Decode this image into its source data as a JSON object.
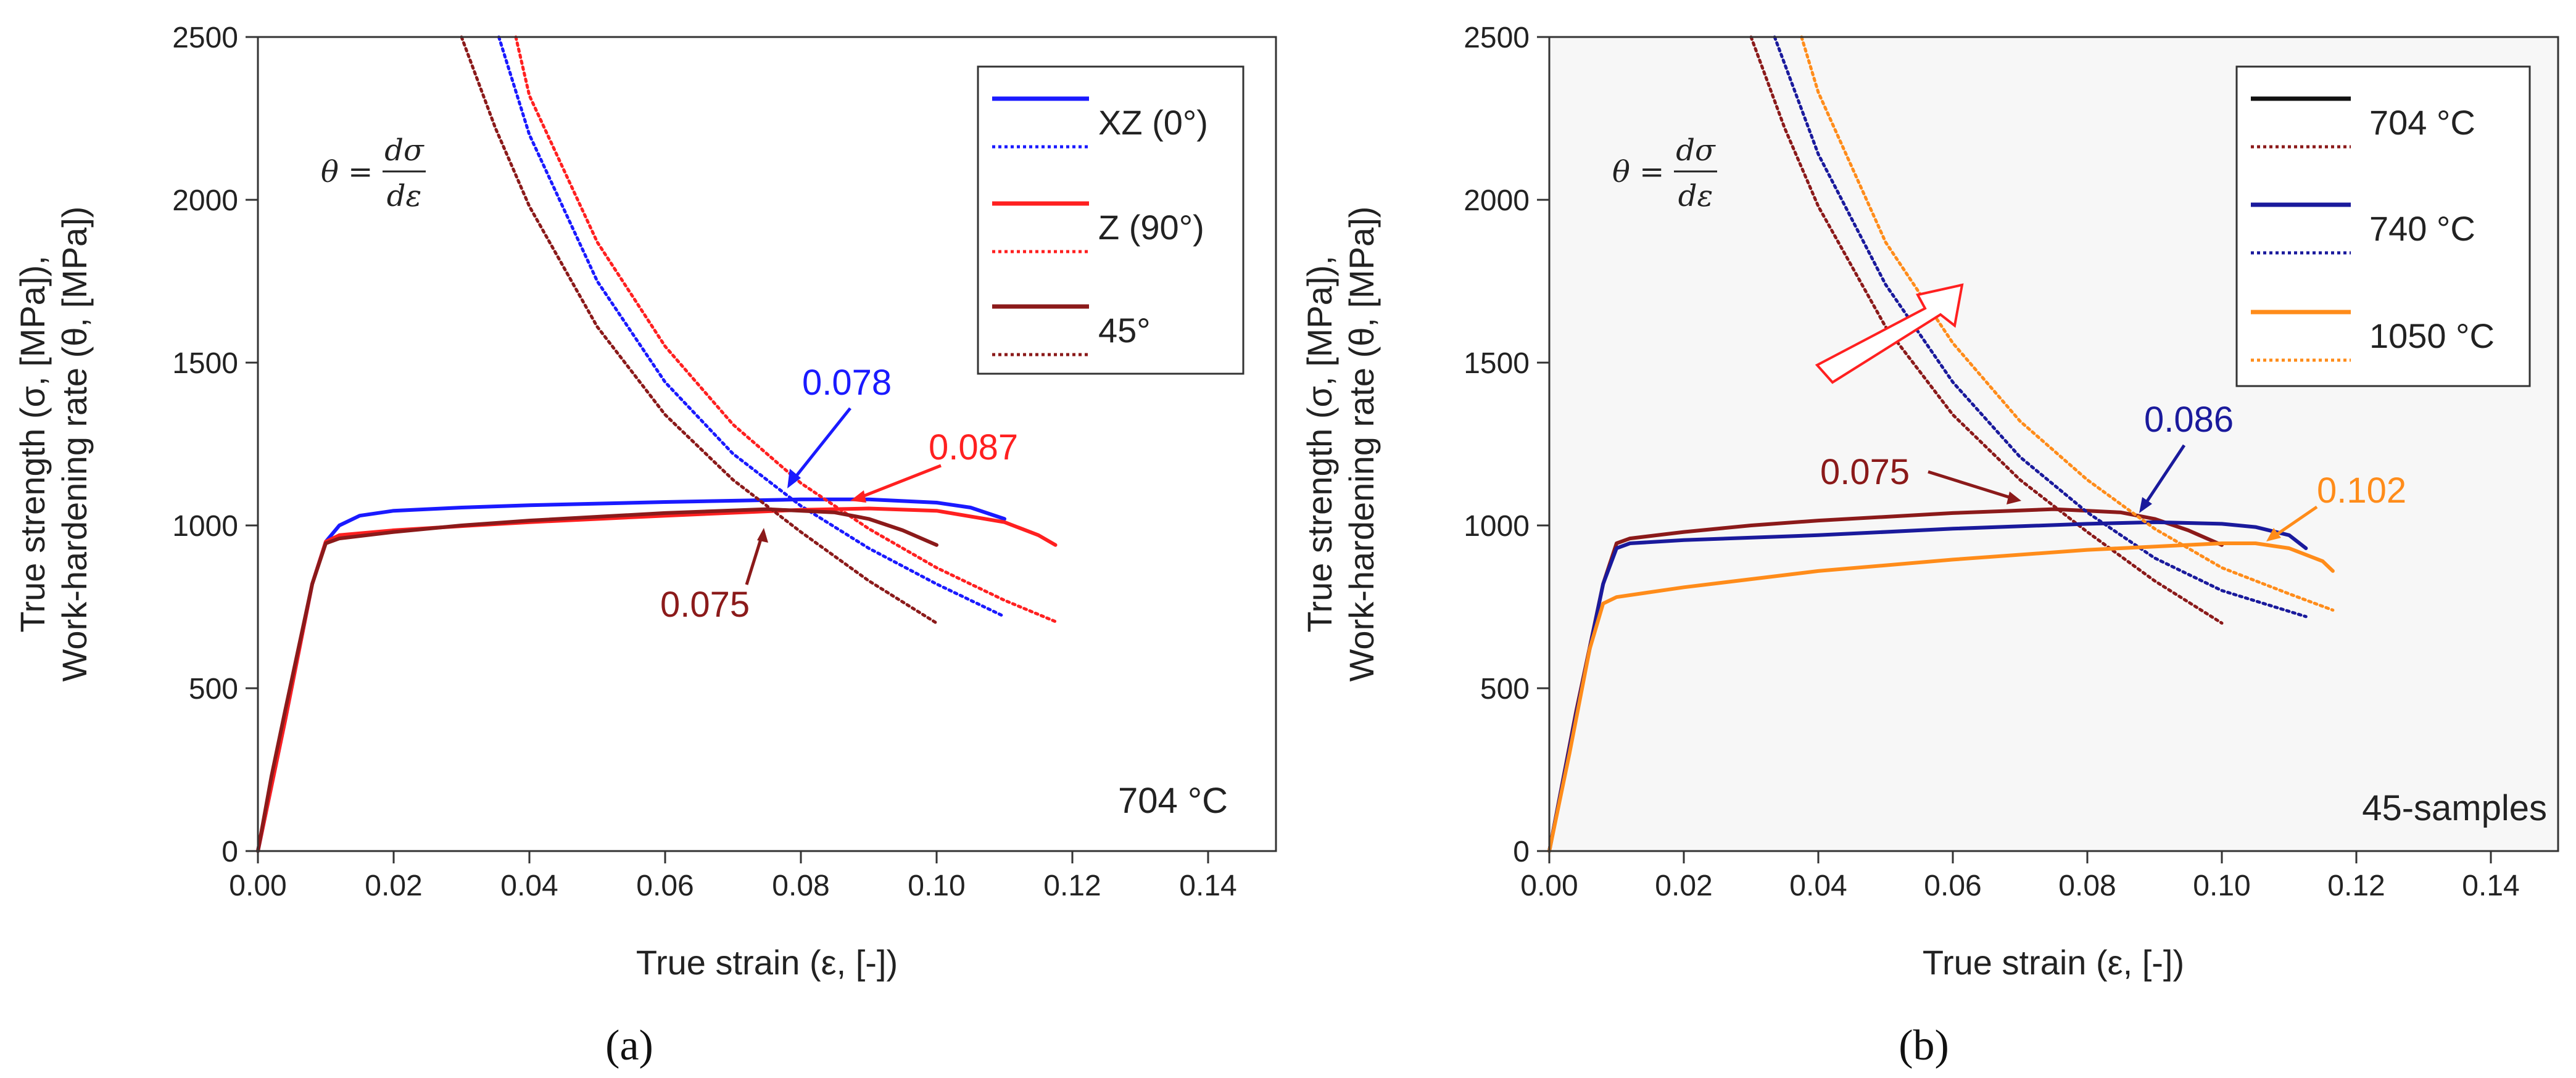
{
  "chart_data": [
    {
      "type": "line",
      "panel_label": "(a)",
      "xlabel": "True strain (ε, [-])",
      "ylabel_line1": "True strength (σ, [MPa]),",
      "ylabel_line2": "Work-hardening rate (θ, [MPa])",
      "xlim": [
        0,
        0.15
      ],
      "ylim": [
        0,
        2500
      ],
      "x_ticks": [
        0.0,
        0.02,
        0.04,
        0.06,
        0.08,
        0.1,
        0.12,
        0.14
      ],
      "x_tick_labels": [
        "0.00",
        "0.02",
        "0.04",
        "0.06",
        "0.08",
        "0.10",
        "0.12",
        "0.14"
      ],
      "y_ticks": [
        0,
        500,
        1000,
        1500,
        2000,
        2500
      ],
      "y_tick_labels": [
        "0",
        "500",
        "1000",
        "1500",
        "2000",
        "2500"
      ],
      "equation": {
        "lhs": "θ =",
        "numerator": "dσ",
        "denominator": "dε"
      },
      "condition_label": "704 °C",
      "background": "#ffffff",
      "series": [
        {
          "name": "XZ (0°) σ",
          "legend": "XZ (0°)",
          "color": "#1a1aff",
          "style": "solid",
          "x": [
            0.0,
            0.004,
            0.008,
            0.01,
            0.012,
            0.015,
            0.02,
            0.03,
            0.04,
            0.06,
            0.08,
            0.09,
            0.1,
            0.105,
            0.11
          ],
          "y": [
            0,
            400,
            820,
            950,
            1000,
            1030,
            1045,
            1055,
            1062,
            1072,
            1080,
            1080,
            1070,
            1055,
            1020
          ]
        },
        {
          "name": "XZ (0°) θ",
          "color": "#1a1aff",
          "style": "dotted",
          "x": [
            0.0355,
            0.04,
            0.05,
            0.06,
            0.07,
            0.08,
            0.09,
            0.1,
            0.11
          ],
          "y": [
            2500,
            2200,
            1750,
            1440,
            1220,
            1060,
            930,
            820,
            720
          ]
        },
        {
          "name": "Z (90°) σ",
          "legend": "Z (90°)",
          "color": "#ff2020",
          "style": "solid",
          "x": [
            0.0,
            0.004,
            0.008,
            0.01,
            0.012,
            0.02,
            0.03,
            0.04,
            0.06,
            0.08,
            0.09,
            0.1,
            0.11,
            0.115,
            0.1175
          ],
          "y": [
            0,
            400,
            820,
            950,
            970,
            985,
            998,
            1010,
            1030,
            1048,
            1052,
            1045,
            1010,
            970,
            940
          ]
        },
        {
          "name": "Z (90°) θ",
          "color": "#ff2020",
          "style": "dotted",
          "x": [
            0.038,
            0.04,
            0.05,
            0.06,
            0.07,
            0.08,
            0.09,
            0.1,
            0.11,
            0.1175
          ],
          "y": [
            2500,
            2320,
            1870,
            1550,
            1310,
            1130,
            990,
            870,
            770,
            705
          ]
        },
        {
          "name": "45° σ",
          "legend": "45°",
          "color": "#8b1a1a",
          "style": "solid",
          "x": [
            0.0,
            0.002,
            0.004,
            0.008,
            0.01,
            0.012,
            0.02,
            0.03,
            0.04,
            0.06,
            0.075,
            0.085,
            0.09,
            0.095,
            0.1
          ],
          "y": [
            0,
            230,
            430,
            820,
            945,
            960,
            980,
            1000,
            1015,
            1038,
            1050,
            1040,
            1020,
            985,
            940
          ]
        },
        {
          "name": "45° θ",
          "color": "#8b1a1a",
          "style": "dotted",
          "x": [
            0.03,
            0.035,
            0.04,
            0.05,
            0.06,
            0.07,
            0.08,
            0.09,
            0.1
          ],
          "y": [
            2500,
            2220,
            1980,
            1610,
            1340,
            1140,
            980,
            830,
            700
          ]
        }
      ],
      "annotations": [
        {
          "text": "0.078",
          "color": "#1a1aff",
          "x": 0.078
        },
        {
          "text": "0.087",
          "color": "#ff2020",
          "x": 0.087
        },
        {
          "text": "0.075",
          "color": "#8b1a1a",
          "x": 0.075
        }
      ]
    },
    {
      "type": "line",
      "panel_label": "(b)",
      "xlabel": "True strain (ε, [-])",
      "ylabel_line1": "True strength (σ, [MPa]),",
      "ylabel_line2": "Work-hardening rate (θ, [MPa])",
      "xlim": [
        0,
        0.15
      ],
      "ylim": [
        0,
        2500
      ],
      "x_ticks": [
        0.0,
        0.02,
        0.04,
        0.06,
        0.08,
        0.1,
        0.12,
        0.14
      ],
      "x_tick_labels": [
        "0.00",
        "0.02",
        "0.04",
        "0.06",
        "0.08",
        "0.10",
        "0.12",
        "0.14"
      ],
      "y_ticks": [
        0,
        500,
        1000,
        1500,
        2000,
        2500
      ],
      "y_tick_labels": [
        "0",
        "500",
        "1000",
        "1500",
        "2000",
        "2500"
      ],
      "equation": {
        "lhs": "θ =",
        "numerator": "dσ",
        "denominator": "dε"
      },
      "condition_label": "45-samples",
      "background": "#f7f7f7",
      "series": [
        {
          "name": "704 °C σ",
          "legend": "704 °C",
          "color": "#8b1a1a",
          "style": "solid",
          "x": [
            0.0,
            0.004,
            0.008,
            0.01,
            0.012,
            0.02,
            0.03,
            0.04,
            0.06,
            0.075,
            0.085,
            0.09,
            0.095,
            0.1
          ],
          "y": [
            0,
            430,
            820,
            945,
            960,
            980,
            1000,
            1015,
            1038,
            1050,
            1040,
            1020,
            985,
            940
          ]
        },
        {
          "name": "704 °C θ",
          "color": "#8b1a1a",
          "style": "dotted",
          "x": [
            0.03,
            0.035,
            0.04,
            0.05,
            0.06,
            0.07,
            0.08,
            0.09,
            0.1
          ],
          "y": [
            2500,
            2220,
            1980,
            1610,
            1340,
            1140,
            980,
            830,
            700
          ]
        },
        {
          "name": "740 °C σ",
          "legend": "740 °C",
          "color": "#1a1a9c",
          "style": "solid",
          "x": [
            0.0,
            0.004,
            0.008,
            0.01,
            0.012,
            0.02,
            0.04,
            0.06,
            0.08,
            0.09,
            0.1,
            0.105,
            0.11,
            0.1125
          ],
          "y": [
            0,
            420,
            820,
            930,
            945,
            955,
            970,
            990,
            1005,
            1010,
            1005,
            995,
            970,
            930
          ]
        },
        {
          "name": "740 °C θ",
          "color": "#1a1a9c",
          "style": "dotted",
          "x": [
            0.0335,
            0.04,
            0.05,
            0.06,
            0.07,
            0.08,
            0.09,
            0.1,
            0.1125
          ],
          "y": [
            2500,
            2140,
            1740,
            1440,
            1210,
            1040,
            900,
            800,
            720
          ]
        },
        {
          "name": "1050 °C σ",
          "legend": "1050 °C",
          "color": "#ff8c1a",
          "style": "solid",
          "x": [
            0.0,
            0.003,
            0.006,
            0.008,
            0.01,
            0.02,
            0.04,
            0.06,
            0.08,
            0.1,
            0.105,
            0.11,
            0.115,
            0.1165
          ],
          "y": [
            0,
            300,
            620,
            760,
            780,
            810,
            860,
            895,
            925,
            945,
            945,
            930,
            890,
            860
          ]
        },
        {
          "name": "1050 °C θ",
          "color": "#ff8c1a",
          "style": "dotted",
          "x": [
            0.0375,
            0.04,
            0.05,
            0.06,
            0.07,
            0.08,
            0.09,
            0.1,
            0.11,
            0.1165
          ],
          "y": [
            2500,
            2330,
            1870,
            1560,
            1320,
            1140,
            990,
            870,
            790,
            740
          ]
        }
      ],
      "annotations": [
        {
          "text": "0.075",
          "color": "#8b1a1a",
          "x": 0.075
        },
        {
          "text": "0.086",
          "color": "#1a1a9c",
          "x": 0.086
        },
        {
          "text": "0.102",
          "color": "#ff8c1a",
          "x": 0.102
        }
      ]
    }
  ]
}
